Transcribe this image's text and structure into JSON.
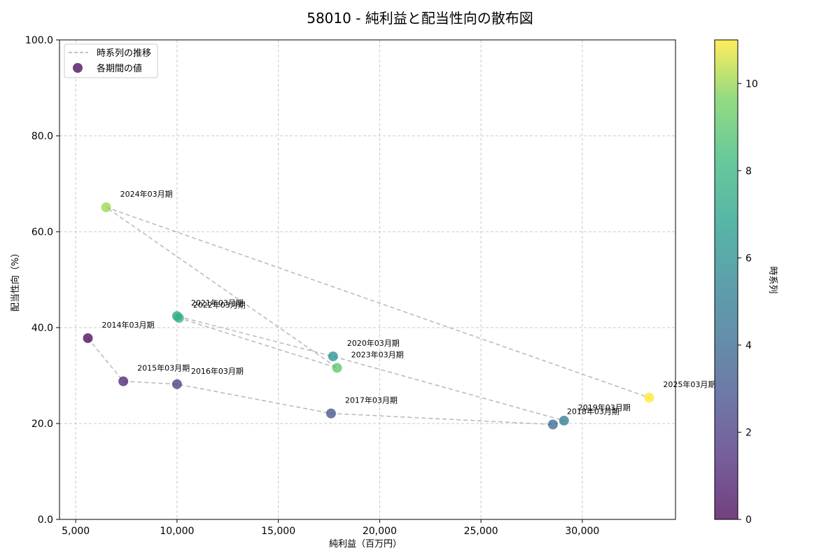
{
  "chart_data": {
    "type": "scatter",
    "title": "58010 - 純利益と配当性向の散布図",
    "xlabel": "純利益（百万円）",
    "ylabel": "配当性向（%）",
    "xlim": [
      4200,
      34600
    ],
    "ylim": [
      0,
      100
    ],
    "xticks": [
      5000,
      10000,
      15000,
      20000,
      25000,
      30000
    ],
    "xtick_labels": [
      "5,000",
      "10,000",
      "15,000",
      "20,000",
      "25,000",
      "30,000"
    ],
    "yticks": [
      0,
      20,
      40,
      60,
      80,
      100
    ],
    "ytick_labels": [
      "0.0",
      "20.0",
      "40.0",
      "60.0",
      "80.0",
      "100.0"
    ],
    "grid": true,
    "legend": {
      "placement": "top-left",
      "entries": [
        "時系列の推移",
        "各期間の値"
      ]
    },
    "colorbar": {
      "label": "時系列",
      "range": [
        0,
        11
      ],
      "ticks": [
        0,
        2,
        4,
        6,
        8,
        10
      ],
      "tick_labels": [
        "0",
        "2",
        "4",
        "6",
        "8",
        "10"
      ]
    },
    "points": [
      {
        "label": "2014年03月期",
        "x": 5600,
        "y": 37.8,
        "t": 0
      },
      {
        "label": "2015年03月期",
        "x": 7350,
        "y": 28.8,
        "t": 1
      },
      {
        "label": "2016年03月期",
        "x": 10000,
        "y": 28.2,
        "t": 2
      },
      {
        "label": "2017年03月期",
        "x": 17600,
        "y": 22.1,
        "t": 3
      },
      {
        "label": "2018年03月期",
        "x": 28550,
        "y": 19.8,
        "t": 4
      },
      {
        "label": "2019年03月期",
        "x": 29100,
        "y": 20.6,
        "t": 5
      },
      {
        "label": "2020年03月期",
        "x": 17700,
        "y": 34.0,
        "t": 6
      },
      {
        "label": "2021年03月期",
        "x": 10000,
        "y": 42.4,
        "t": 7
      },
      {
        "label": "2022年03月期",
        "x": 10100,
        "y": 42.0,
        "t": 8
      },
      {
        "label": "2023年03月期",
        "x": 17900,
        "y": 31.6,
        "t": 9
      },
      {
        "label": "2024年03月期",
        "x": 6500,
        "y": 65.1,
        "t": 10
      },
      {
        "label": "2025年03月期",
        "x": 33300,
        "y": 25.4,
        "t": 11
      }
    ]
  }
}
